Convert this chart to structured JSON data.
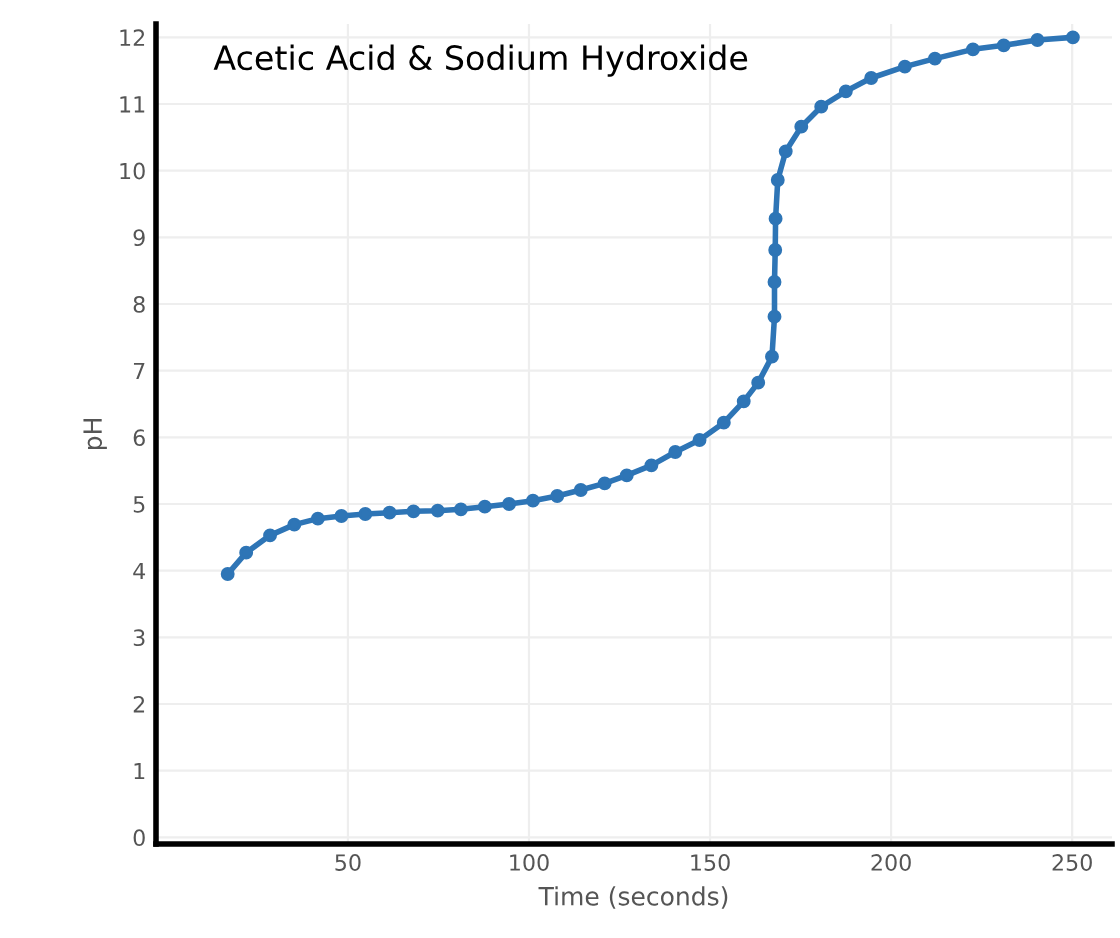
{
  "chart_data": {
    "type": "line",
    "title": "Acetic Acid & Sodium Hydroxide",
    "xlabel": "Time (seconds)",
    "ylabel": "pH",
    "x": [
      16.8,
      21.9,
      28.5,
      35.2,
      41.7,
      48.2,
      54.8,
      61.5,
      68.1,
      74.8,
      81.2,
      87.8,
      94.5,
      101.1,
      107.8,
      114.3,
      120.9,
      127.0,
      133.8,
      140.4,
      147.1,
      153.8,
      159.3,
      163.3,
      167.1,
      167.8,
      167.8,
      168.0,
      168.1,
      168.7,
      170.9,
      175.2,
      180.7,
      187.5,
      194.5,
      203.8,
      212.1,
      222.6,
      231.1,
      240.4,
      250.2
    ],
    "series": [
      {
        "color": "#2e75b6",
        "values": [
          3.95,
          4.27,
          4.53,
          4.69,
          4.78,
          4.82,
          4.85,
          4.87,
          4.89,
          4.9,
          4.92,
          4.96,
          5.0,
          5.05,
          5.12,
          5.21,
          5.31,
          5.43,
          5.58,
          5.78,
          5.96,
          6.22,
          6.54,
          6.82,
          7.21,
          7.81,
          8.33,
          8.81,
          9.28,
          9.86,
          10.29,
          10.66,
          10.96,
          11.19,
          11.39,
          11.56,
          11.68,
          11.82,
          11.88,
          11.96,
          12.0
        ]
      }
    ],
    "xlim": [
      -3,
      261
    ],
    "xticks": [
      50,
      100,
      150,
      200,
      250
    ],
    "ylim": [
      -0.1,
      12.2
    ],
    "yticks": [
      0,
      1,
      2,
      3,
      4,
      5,
      6,
      7,
      8,
      9,
      10,
      11,
      12
    ],
    "grid": true,
    "marker": "circle",
    "line_style": "solid",
    "legend": false
  }
}
